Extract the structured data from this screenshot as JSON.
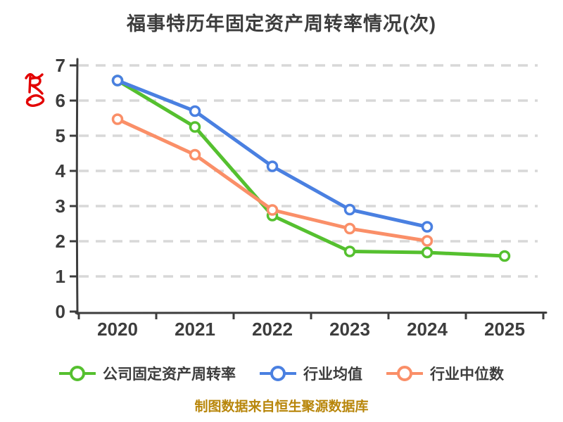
{
  "title": "福事特历年固定资产周转率情况(次)",
  "footer": "制图数据来自恒生聚源数据库",
  "annotation": {
    "name": "red-handwritten-scribble",
    "color": "#e30000"
  },
  "style_colors": {
    "title_text": "#3d3d3d",
    "axis": "#3d3d3d",
    "tick_label": "#3d3d3d",
    "gridline": "#d8d8d8",
    "footer_text": "#b8860b",
    "background": "#ffffff",
    "marker_fill": "#ffffff"
  },
  "chart_data": {
    "type": "line",
    "title": "福事特历年固定资产周转率情况(次)",
    "xlabel": "",
    "ylabel": "",
    "categories": [
      "2020",
      "2021",
      "2022",
      "2023",
      "2024",
      "2025"
    ],
    "ylim": [
      0,
      7
    ],
    "yticks": [
      0,
      1,
      2,
      3,
      4,
      5,
      6,
      7
    ],
    "grid": "horizontal dashed",
    "legend_position": "bottom",
    "line_style": "hand-drawn solid with circular white-filled markers",
    "series": [
      {
        "name": "公司固定资产周转率",
        "color": "#55c02f",
        "values": [
          6.57,
          5.25,
          2.73,
          1.71,
          1.68,
          1.58
        ]
      },
      {
        "name": "行业均值",
        "color": "#4a80e1",
        "values": [
          6.57,
          5.7,
          4.13,
          2.9,
          2.41,
          null
        ]
      },
      {
        "name": "行业中位数",
        "color": "#fa8f68",
        "values": [
          5.47,
          4.46,
          2.89,
          2.36,
          2.01,
          null
        ]
      }
    ]
  }
}
